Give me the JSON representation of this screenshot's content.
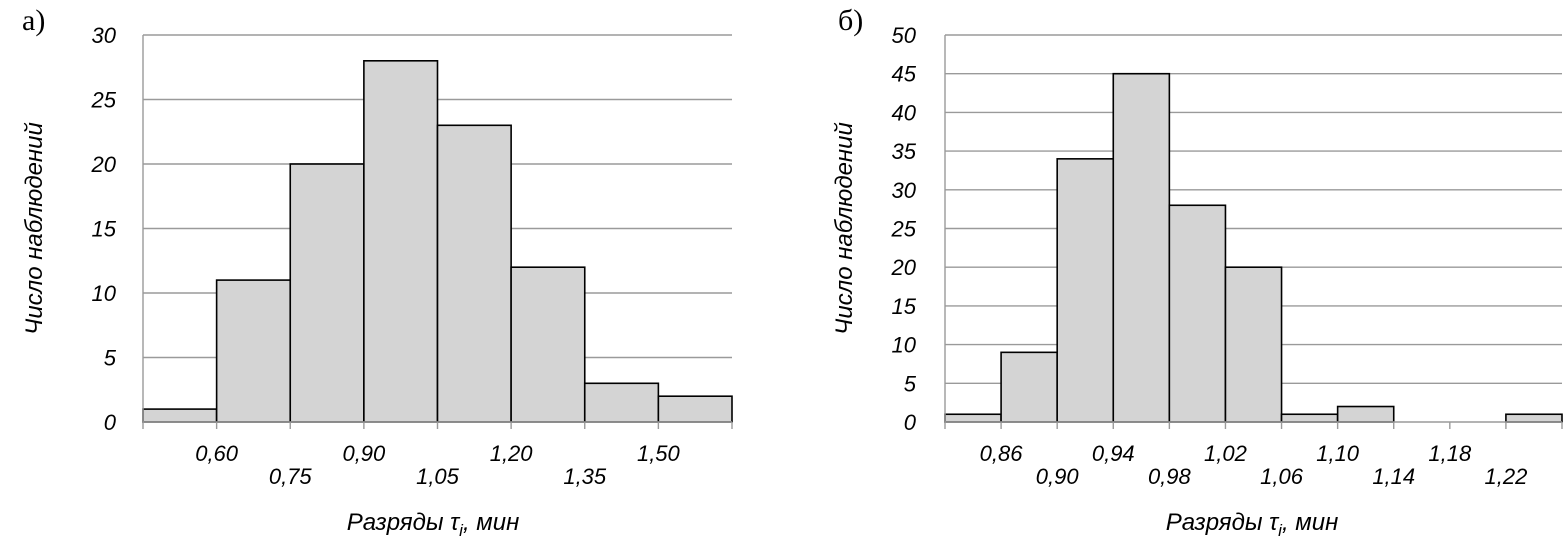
{
  "chart_data": [
    {
      "type": "bar",
      "panel_label": "а)",
      "ylabel": "Число наблюдений",
      "xlabel_main": "Разряды τ",
      "xlabel_sub": "i",
      "xlabel_tail": ", мин",
      "ylim": [
        0,
        30
      ],
      "ystep": 5,
      "yticks": [
        "0",
        "5",
        "10",
        "15",
        "20",
        "25",
        "30"
      ],
      "values": [
        1,
        11,
        20,
        28,
        23,
        12,
        3,
        2
      ],
      "bin_edges": [
        "0,60",
        "0,75",
        "0,90",
        "1,05",
        "1,20",
        "1,35",
        "1,50"
      ],
      "grid": true,
      "bar_color": "#d4d4d4"
    },
    {
      "type": "bar",
      "panel_label": "б)",
      "ylabel": "Число наблюдений",
      "xlabel_main": "Разряды τ",
      "xlabel_sub": "i",
      "xlabel_tail": ", мин",
      "ylim": [
        0,
        50
      ],
      "ystep": 5,
      "yticks": [
        "0",
        "5",
        "10",
        "15",
        "20",
        "25",
        "30",
        "35",
        "40",
        "45",
        "50"
      ],
      "values": [
        1,
        9,
        34,
        45,
        28,
        20,
        1,
        2,
        0,
        0,
        1
      ],
      "bin_edges": [
        "0,86",
        "0,90",
        "0,94",
        "0,98",
        "1,02",
        "1,06",
        "1,10",
        "1,14",
        "1,18",
        "1,22"
      ],
      "grid": true,
      "bar_color": "#d4d4d4"
    }
  ]
}
